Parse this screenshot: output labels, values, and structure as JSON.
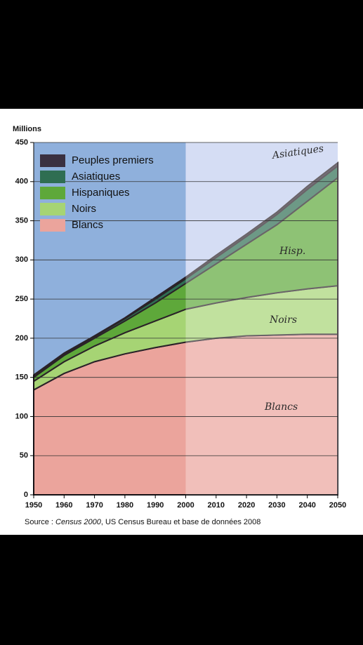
{
  "chart_data": {
    "type": "stacked-area",
    "y_unit_label": "Millions",
    "x": [
      1950,
      1960,
      1970,
      1980,
      1990,
      2000,
      2010,
      2020,
      2030,
      2040,
      2050
    ],
    "series": [
      {
        "name": "Blancs",
        "color": "#eba49c",
        "values": [
          134,
          155,
          170,
          180,
          188,
          195,
          200,
          203,
          204,
          205,
          205
        ]
      },
      {
        "name": "Noirs",
        "color": "#a6d474",
        "values": [
          11,
          15,
          20,
          27,
          34,
          42,
          45,
          49,
          54,
          58,
          62
        ]
      },
      {
        "name": "Hispaniques",
        "color": "#5ea83a",
        "values": [
          5,
          8,
          10,
          15,
          23,
          33,
          50,
          68,
          87,
          112,
          138
        ]
      },
      {
        "name": "Asiatiques",
        "color": "#2f6e52",
        "values": [
          2,
          2,
          2,
          3,
          5,
          6,
          8,
          10,
          13,
          15,
          15
        ]
      },
      {
        "name": "Peuples premiers",
        "color": "#3a3040",
        "values": [
          1,
          1,
          1,
          1,
          2,
          2,
          3,
          3,
          3,
          4,
          4
        ]
      }
    ],
    "xlim": [
      1950,
      2050
    ],
    "xticks": [
      1950,
      1960,
      1970,
      1980,
      1990,
      2000,
      2010,
      2020,
      2030,
      2040,
      2050
    ],
    "ylim": [
      0,
      450
    ],
    "yticks": [
      0,
      50,
      100,
      150,
      200,
      250,
      300,
      350,
      400,
      450
    ],
    "grid": true,
    "projection_start": 2000,
    "annotations": [
      "Asiatiques",
      "Hisp.",
      "Noirs",
      "Blancs"
    ],
    "source": {
      "prefix": "Source : ",
      "italic": "Census 2000",
      "suffix": ", US Census Bureau et base de données 2008"
    }
  }
}
